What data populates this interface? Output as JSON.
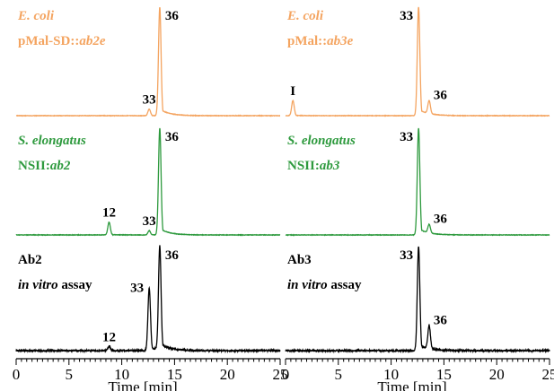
{
  "colors": {
    "orange": "#f4a460",
    "green": "#2e9a3e",
    "black": "#000000"
  },
  "axis": {
    "xlabel": "Time [min]",
    "ticks": [
      "0",
      "5",
      "10",
      "15",
      "20",
      "25"
    ]
  },
  "chart_data": [
    {
      "type": "line",
      "panel": "left",
      "xlim": [
        0,
        25
      ],
      "xlabel": "Time [min]",
      "traces": [
        {
          "label_line1": "E. coli",
          "label_line2_plain": "pMal-SD::",
          "label_line2_italic": "ab2e",
          "color": "orange",
          "peaks": [
            {
              "label": "33",
              "x": 12.6,
              "height": 0.06
            },
            {
              "label": "36",
              "x": 13.6,
              "height": 1.0
            }
          ]
        },
        {
          "label_line1": "S. elongatus",
          "label_line2_plain": "NSII:",
          "label_line2_italic": "ab2",
          "color": "green",
          "peaks": [
            {
              "label": "12",
              "x": 8.8,
              "height": 0.12
            },
            {
              "label": "33",
              "x": 12.6,
              "height": 0.04
            },
            {
              "label": "36",
              "x": 13.6,
              "height": 1.0
            }
          ]
        },
        {
          "label_line1": "Ab2",
          "label_line2_italic": "in vitro",
          "label_line2_plain": " assay",
          "color": "black",
          "peaks": [
            {
              "label": "12",
              "x": 8.8,
              "height": 0.04
            },
            {
              "label": "33",
              "x": 12.6,
              "height": 0.6
            },
            {
              "label": "36",
              "x": 13.6,
              "height": 1.0
            }
          ]
        }
      ]
    },
    {
      "type": "line",
      "panel": "right",
      "xlim": [
        0,
        25
      ],
      "xlabel": "Time [min]",
      "traces": [
        {
          "label_line1": "E. coli",
          "label_line2_plain": "pMal::",
          "label_line2_italic": "ab3e",
          "color": "orange",
          "peaks": [
            {
              "label": "I",
              "x": 0.7,
              "height": 0.14
            },
            {
              "label": "33",
              "x": 12.6,
              "height": 1.0
            },
            {
              "label": "36",
              "x": 13.6,
              "height": 0.12
            }
          ]
        },
        {
          "label_line1": "S. elongatus",
          "label_line2_plain": "NSII:",
          "label_line2_italic": "ab3",
          "color": "green",
          "peaks": [
            {
              "label": "33",
              "x": 12.6,
              "height": 1.0
            },
            {
              "label": "36",
              "x": 13.6,
              "height": 0.08
            }
          ]
        },
        {
          "label_line1": "Ab3",
          "label_line2_italic": "in vitro",
          "label_line2_plain": " assay",
          "color": "black",
          "peaks": [
            {
              "label": "33",
              "x": 12.6,
              "height": 1.0
            },
            {
              "label": "36",
              "x": 13.6,
              "height": 0.22
            }
          ]
        }
      ]
    }
  ]
}
